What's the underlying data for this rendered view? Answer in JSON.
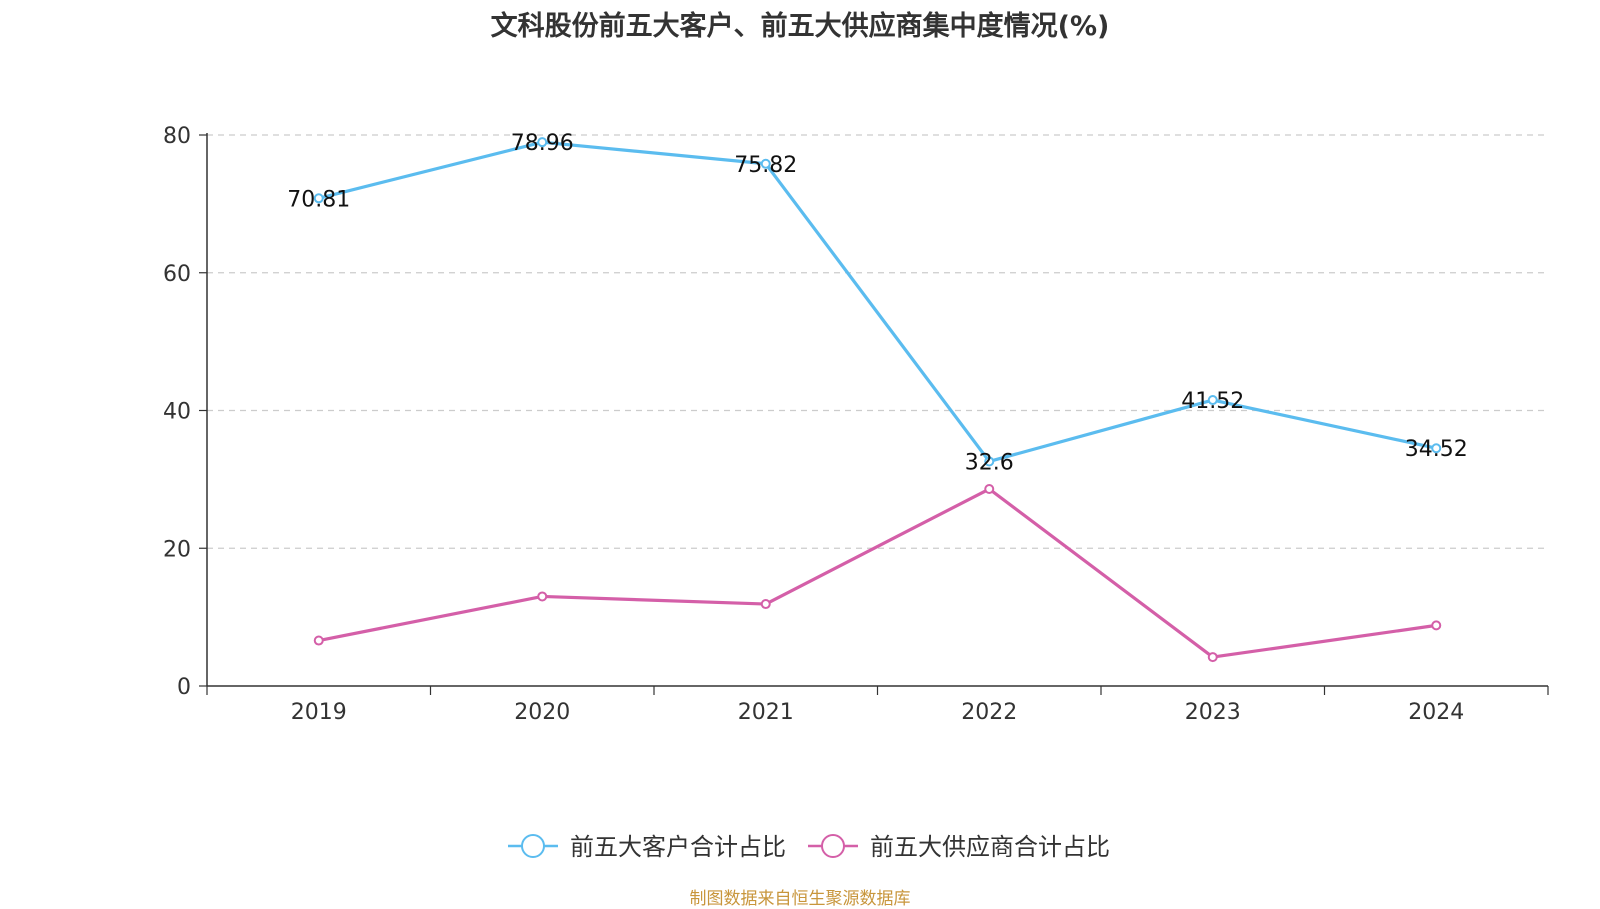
{
  "chart_data": {
    "type": "line",
    "title": "文科股份前五大客户、前五大供应商集中度情况(%)",
    "categories": [
      "2019",
      "2020",
      "2021",
      "2022",
      "2023",
      "2024"
    ],
    "ylim": [
      0,
      80
    ],
    "yticks": [
      0,
      20,
      40,
      60,
      80
    ],
    "grid": true,
    "legend_position": "bottom",
    "series": [
      {
        "name": "前五大客户合计占比",
        "color": "#5bbcef",
        "values": [
          70.81,
          78.96,
          75.82,
          32.6,
          41.52,
          34.52
        ],
        "labels": [
          "70.81",
          "78.96",
          "75.82",
          "32.6",
          "41.52",
          "34.52"
        ]
      },
      {
        "name": "前五大供应商合计占比",
        "color": "#d45fa8",
        "values": [
          6.6,
          13.0,
          11.9,
          28.6,
          4.2,
          8.8
        ]
      }
    ]
  },
  "source_note": "制图数据来自恒生聚源数据库"
}
